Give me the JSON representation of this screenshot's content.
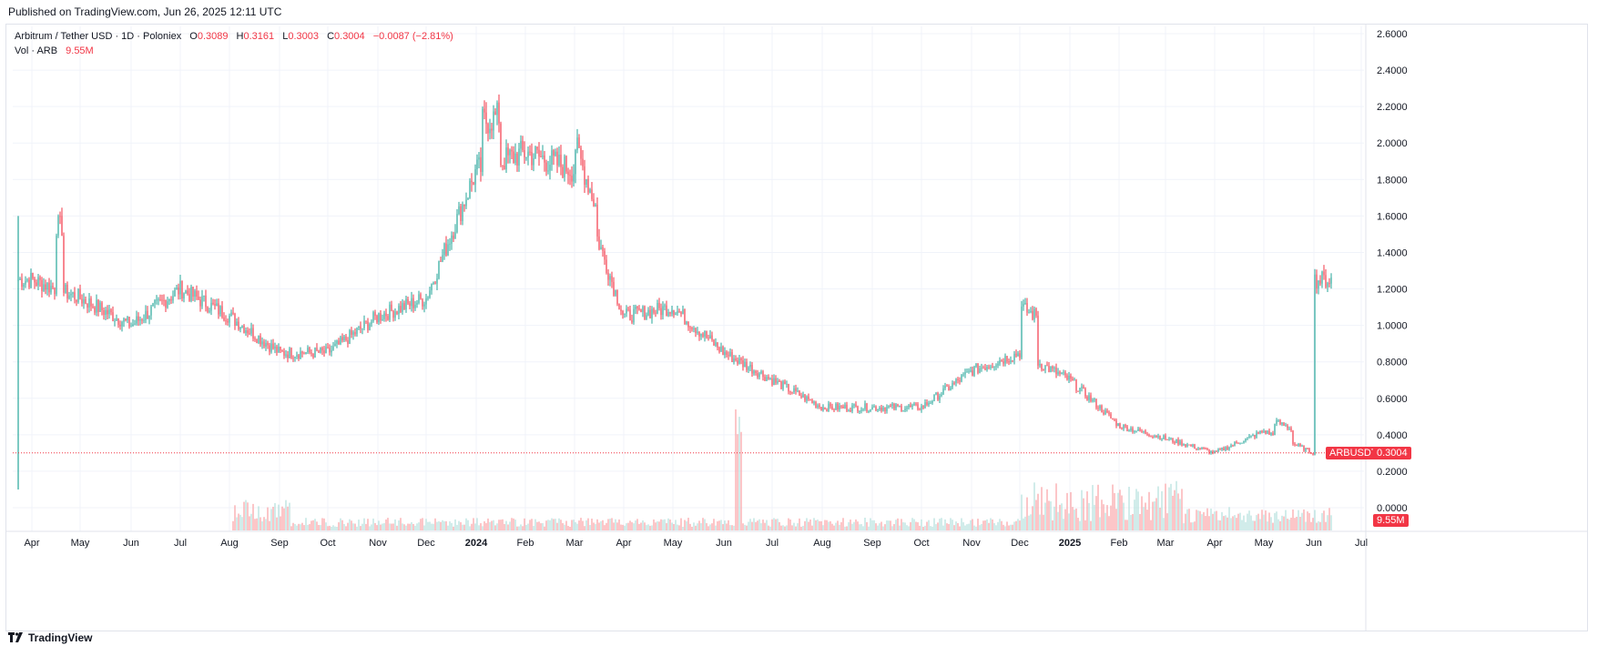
{
  "header": {
    "published": "Published on TradingView.com, Jun 26, 2025 12:11 UTC"
  },
  "legend": {
    "symbol": "Arbitrum / Tether USD · 1D · Poloniex",
    "o_label": "O",
    "o_value": "0.3089",
    "h_label": "H",
    "h_value": "0.3161",
    "l_label": "L",
    "l_value": "0.3003",
    "c_label": "C",
    "c_value": "0.3004",
    "change": "−0.0087 (−2.81%)",
    "vol_label": "Vol · ARB",
    "vol_value": "9.55M"
  },
  "badges": {
    "symbol_tag": "ARBUSDT",
    "price_tag": "0.3004",
    "volume_tag": "9.55M"
  },
  "footer": {
    "brand": "TradingView"
  },
  "colors": {
    "up": "#26a69a",
    "down": "#f23645",
    "grid": "#f0f3fa",
    "axis_text": "#131722"
  },
  "chart_data": {
    "type": "candlestick",
    "title": "Arbitrum / Tether USD · 1D · Poloniex",
    "y_ticks": [
      "2.6000",
      "2.4000",
      "2.2000",
      "2.0000",
      "1.8000",
      "1.6000",
      "1.4000",
      "1.2000",
      "1.0000",
      "0.8000",
      "0.6000",
      "0.4000",
      "0.2000",
      "0.0000"
    ],
    "ylim": [
      0,
      2.6
    ],
    "x_ticks": [
      "Apr",
      "May",
      "Jun",
      "Jul",
      "Aug",
      "Sep",
      "Oct",
      "Nov",
      "Dec",
      "2024",
      "Feb",
      "Mar",
      "Apr",
      "May",
      "Jun",
      "Jul",
      "Aug",
      "Sep",
      "Oct",
      "Nov",
      "Dec",
      "2025",
      "Feb",
      "Mar",
      "Apr",
      "May",
      "Jun",
      "Jul"
    ],
    "approx_close_by_month": {
      "2023-04": 1.25,
      "2023-05": 1.15,
      "2023-06": 1.0,
      "2023-07": 1.2,
      "2023-08": 1.05,
      "2023-09": 0.85,
      "2023-10": 0.85,
      "2023-11": 1.05,
      "2023-12": 1.15,
      "2024-01": 1.85,
      "2024-02": 1.95,
      "2024-03": 1.85,
      "2024-04": 1.05,
      "2024-05": 1.1,
      "2024-06": 0.85,
      "2024-07": 0.7,
      "2024-08": 0.55,
      "2024-09": 0.55,
      "2024-10": 0.55,
      "2024-11": 0.75,
      "2024-12": 0.85,
      "2025-01": 0.7,
      "2025-02": 0.45,
      "2025-03": 0.38,
      "2025-04": 0.3,
      "2025-05": 0.42,
      "2025-06": 0.3
    },
    "last_close": 0.3004,
    "last_volume": "9.55M"
  }
}
